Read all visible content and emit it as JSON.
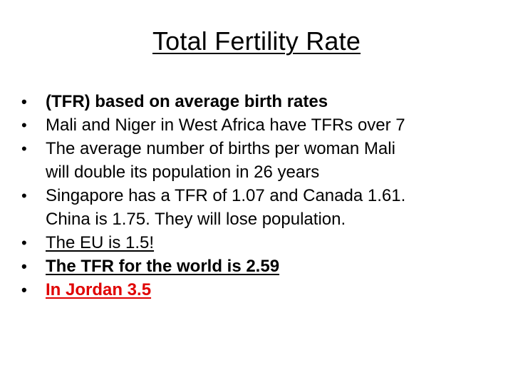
{
  "slide": {
    "title": "Total Fertility Rate",
    "bullet_glyph": "•",
    "bullets": [
      {
        "lines": [
          "(TFR) based on average birth rates"
        ],
        "style": "bold"
      },
      {
        "lines": [
          "Mali and Niger in West Africa have TFRs over 7"
        ],
        "style": "normal"
      },
      {
        "lines": [
          "The average number of births per woman Mali",
          "will double its population in 26 years"
        ],
        "style": "normal"
      },
      {
        "lines": [
          "Singapore has a TFR of 1.07 and Canada 1.61.",
          "China is 1.75. They will lose population."
        ],
        "style": "normal"
      },
      {
        "lines": [
          "The EU is 1.5!"
        ],
        "style": "underline"
      },
      {
        "lines": [
          "The TFR for the world is 2.59"
        ],
        "style": "bold-underline"
      },
      {
        "lines": [
          "In Jordan 3.5"
        ],
        "style": "bold-underline-red"
      }
    ]
  },
  "colors": {
    "text": "#000000",
    "highlight": "#e00000",
    "background": "#ffffff"
  }
}
